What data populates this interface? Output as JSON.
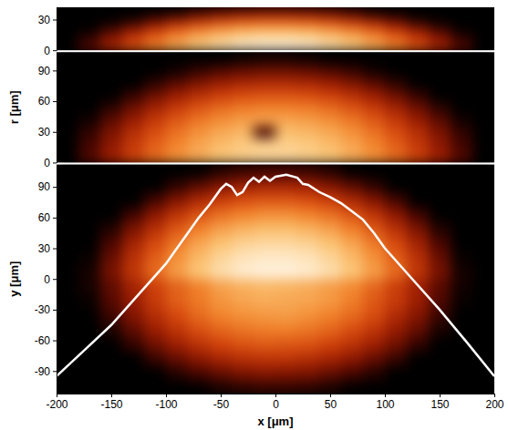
{
  "chart_data": [
    {
      "type": "heatmap",
      "xlim": [
        -200,
        200
      ],
      "ylim": [
        0,
        42
      ],
      "yticks": [
        0,
        30
      ],
      "tick_labels": "y",
      "zlim": [
        0,
        1
      ],
      "x_edges": [
        -200,
        -180,
        -160,
        -140,
        -120,
        -100,
        -80,
        -60,
        -40,
        -20,
        0,
        20,
        40,
        60,
        80,
        100,
        120,
        140,
        160,
        180,
        200
      ],
      "y_edges": [
        0,
        7,
        14,
        21,
        28,
        35,
        42
      ],
      "cells": [
        [
          0,
          0.19,
          0.37,
          0.53,
          0.66,
          0.77,
          0.86,
          0.92,
          0.97,
          0.99,
          0.99,
          0.97,
          0.92,
          0.86,
          0.77,
          0.66,
          0.53,
          0.37,
          0.19,
          0
        ],
        [
          0,
          0.14,
          0.32,
          0.48,
          0.61,
          0.72,
          0.81,
          0.87,
          0.92,
          0.94,
          0.94,
          0.92,
          0.87,
          0.81,
          0.72,
          0.61,
          0.48,
          0.32,
          0.14,
          0
        ],
        [
          0,
          0.04,
          0.22,
          0.37,
          0.51,
          0.62,
          0.71,
          0.77,
          0.82,
          0.84,
          0.84,
          0.82,
          0.77,
          0.71,
          0.62,
          0.51,
          0.37,
          0.22,
          0.04,
          0
        ],
        [
          0,
          0,
          0.07,
          0.22,
          0.35,
          0.47,
          0.55,
          0.62,
          0.67,
          0.69,
          0.69,
          0.67,
          0.62,
          0.55,
          0.47,
          0.35,
          0.22,
          0.07,
          0,
          0
        ],
        [
          0,
          0,
          0,
          0.02,
          0.15,
          0.26,
          0.35,
          0.42,
          0.46,
          0.48,
          0.48,
          0.46,
          0.42,
          0.35,
          0.26,
          0.15,
          0.02,
          0,
          0,
          0
        ],
        [
          0,
          0,
          0,
          0,
          0,
          0.01,
          0.1,
          0.17,
          0.21,
          0.23,
          0.23,
          0.21,
          0.17,
          0.1,
          0.01,
          0,
          0,
          0,
          0,
          0
        ]
      ]
    },
    {
      "type": "heatmap",
      "ylabel": "r [μm]",
      "xlim": [
        -200,
        200
      ],
      "ylim": [
        0,
        108
      ],
      "yticks": [
        0,
        30,
        60,
        90
      ],
      "tick_labels": "y",
      "zlim": [
        0,
        1
      ],
      "x_edges": [
        -200,
        -180,
        -160,
        -140,
        -120,
        -100,
        -80,
        -60,
        -40,
        -20,
        0,
        20,
        40,
        60,
        80,
        100,
        120,
        140,
        160,
        180,
        200
      ],
      "y_edges": [
        0,
        12,
        24,
        36,
        48,
        60,
        72,
        84,
        96,
        108
      ],
      "cells": [
        [
          0,
          0.18,
          0.34,
          0.48,
          0.6,
          0.7,
          0.77,
          0.84,
          0.87,
          0.89,
          0.89,
          0.87,
          0.84,
          0.77,
          0.7,
          0.6,
          0.48,
          0.34,
          0.18,
          0
        ],
        [
          0,
          0.15,
          0.31,
          0.45,
          0.57,
          0.67,
          0.75,
          0.81,
          0.85,
          0.87,
          0.87,
          0.85,
          0.81,
          0.75,
          0.67,
          0.57,
          0.45,
          0.31,
          0.15,
          0
        ],
        [
          0,
          0.11,
          0.27,
          0.41,
          0.52,
          0.62,
          0.7,
          0.76,
          0.8,
          0.15,
          0.82,
          0.8,
          0.76,
          0.7,
          0.62,
          0.52,
          0.41,
          0.27,
          0.11,
          0
        ],
        [
          0,
          0.04,
          0.2,
          0.33,
          0.45,
          0.55,
          0.63,
          0.69,
          0.73,
          0.75,
          0.75,
          0.73,
          0.69,
          0.63,
          0.55,
          0.45,
          0.33,
          0.2,
          0.04,
          0
        ],
        [
          0,
          0,
          0.1,
          0.24,
          0.36,
          0.46,
          0.54,
          0.6,
          0.64,
          0.66,
          0.66,
          0.64,
          0.6,
          0.54,
          0.46,
          0.36,
          0.24,
          0.1,
          0,
          0
        ],
        [
          0,
          0,
          0,
          0.12,
          0.24,
          0.34,
          0.42,
          0.48,
          0.52,
          0.54,
          0.54,
          0.52,
          0.48,
          0.42,
          0.34,
          0.24,
          0.12,
          0,
          0,
          0
        ],
        [
          0,
          0,
          0,
          0,
          0.1,
          0.2,
          0.28,
          0.34,
          0.38,
          0.4,
          0.4,
          0.38,
          0.34,
          0.28,
          0.2,
          0.1,
          0,
          0,
          0,
          0
        ],
        [
          0,
          0,
          0,
          0,
          0,
          0.04,
          0.12,
          0.18,
          0.22,
          0.24,
          0.24,
          0.22,
          0.18,
          0.12,
          0.04,
          0,
          0,
          0,
          0,
          0
        ],
        [
          0,
          0,
          0,
          0,
          0,
          0,
          0,
          0,
          0.03,
          0.05,
          0.05,
          0.03,
          0,
          0,
          0,
          0,
          0,
          0,
          0,
          0
        ]
      ]
    },
    {
      "type": "heatmap",
      "ylabel": "y [μm]",
      "xlabel": "x [μm]",
      "xlim": [
        -200,
        200
      ],
      "xticks": [
        -200,
        -150,
        -100,
        -50,
        0,
        50,
        100,
        150,
        200
      ],
      "ylim": [
        -112,
        112
      ],
      "yticks": [
        -90,
        -60,
        -30,
        0,
        30,
        60,
        90
      ],
      "zlim": [
        0,
        1
      ],
      "x_edges": [
        -200,
        -180,
        -160,
        -140,
        -120,
        -100,
        -80,
        -60,
        -40,
        -20,
        0,
        20,
        40,
        60,
        80,
        100,
        120,
        140,
        160,
        180,
        200
      ],
      "y_edges": [
        -112,
        -98,
        -84,
        -70,
        -56,
        -42,
        -28,
        -14,
        0,
        14,
        28,
        42,
        56,
        70,
        84,
        98,
        112
      ],
      "cells": [
        [
          0,
          0,
          0,
          0,
          0,
          0,
          0.01,
          0.07,
          0.11,
          0.13,
          0.13,
          0.11,
          0.07,
          0.01,
          0,
          0,
          0,
          0,
          0,
          0
        ],
        [
          0,
          0,
          0,
          0,
          0,
          0.09,
          0.17,
          0.23,
          0.28,
          0.3,
          0.29,
          0.28,
          0.23,
          0.17,
          0.09,
          0,
          0,
          0,
          0,
          0
        ],
        [
          0,
          0,
          0,
          0,
          0.13,
          0.23,
          0.31,
          0.38,
          0.42,
          0.44,
          0.44,
          0.41,
          0.37,
          0.31,
          0.23,
          0.13,
          0,
          0,
          0,
          0
        ],
        [
          0,
          0,
          0,
          0.12,
          0.25,
          0.35,
          0.43,
          0.5,
          0.54,
          0.56,
          0.55,
          0.54,
          0.49,
          0.43,
          0.35,
          0.25,
          0.12,
          0,
          0,
          0
        ],
        [
          0,
          0,
          0.07,
          0.21,
          0.34,
          0.44,
          0.53,
          0.59,
          0.63,
          0.65,
          0.66,
          0.63,
          0.59,
          0.52,
          0.44,
          0.33,
          0.22,
          0.06,
          0,
          0
        ],
        [
          0,
          0,
          0.14,
          0.29,
          0.41,
          0.51,
          0.6,
          0.67,
          0.7,
          0.72,
          0.73,
          0.7,
          0.66,
          0.6,
          0.52,
          0.4,
          0.29,
          0.13,
          0,
          0
        ],
        [
          0,
          0.02,
          0.19,
          0.33,
          0.46,
          0.57,
          0.64,
          0.71,
          0.75,
          0.77,
          0.76,
          0.75,
          0.72,
          0.65,
          0.55,
          0.46,
          0.34,
          0.18,
          0.02,
          0
        ],
        [
          0,
          0.05,
          0.21,
          0.36,
          0.48,
          0.58,
          0.66,
          0.74,
          0.78,
          0.8,
          0.79,
          0.77,
          0.73,
          0.68,
          0.59,
          0.47,
          0.35,
          0.2,
          0.04,
          0
        ],
        [
          0,
          0.05,
          0.26,
          0.44,
          0.6,
          0.73,
          0.84,
          0.92,
          0.97,
          0.99,
          0.99,
          0.97,
          0.92,
          0.84,
          0.73,
          0.6,
          0.44,
          0.26,
          0.05,
          0
        ],
        [
          0,
          0.02,
          0.23,
          0.42,
          0.57,
          0.7,
          0.81,
          0.89,
          0.94,
          0.96,
          0.96,
          0.94,
          0.89,
          0.81,
          0.7,
          0.57,
          0.42,
          0.23,
          0.02,
          0
        ],
        [
          0,
          0,
          0.17,
          0.36,
          0.51,
          0.64,
          0.75,
          0.83,
          0.88,
          0.9,
          0.9,
          0.88,
          0.83,
          0.75,
          0.64,
          0.51,
          0.36,
          0.17,
          0,
          0
        ],
        [
          0,
          0,
          0.08,
          0.27,
          0.42,
          0.55,
          0.66,
          0.74,
          0.79,
          0.82,
          0.82,
          0.79,
          0.74,
          0.66,
          0.55,
          0.42,
          0.27,
          0.08,
          0,
          0
        ],
        [
          0,
          0,
          0,
          0.15,
          0.31,
          0.44,
          0.54,
          0.62,
          0.67,
          0.7,
          0.7,
          0.67,
          0.62,
          0.54,
          0.44,
          0.31,
          0.15,
          0,
          0,
          0
        ],
        [
          0,
          0,
          0,
          0,
          0.16,
          0.29,
          0.39,
          0.47,
          0.52,
          0.55,
          0.55,
          0.52,
          0.47,
          0.39,
          0.29,
          0.16,
          0,
          0,
          0,
          0
        ],
        [
          0,
          0,
          0,
          0,
          0,
          0.11,
          0.21,
          0.29,
          0.35,
          0.37,
          0.37,
          0.35,
          0.29,
          0.21,
          0.11,
          0,
          0,
          0,
          0,
          0
        ],
        [
          0,
          0,
          0,
          0,
          0,
          0,
          0.01,
          0.09,
          0.14,
          0.16,
          0.16,
          0.14,
          0.09,
          0.01,
          0,
          0,
          0,
          0,
          0,
          0
        ]
      ],
      "series": [
        {
          "type": "line",
          "color": "#ffffff",
          "x": [
            -200,
            -175,
            -150,
            -125,
            -100,
            -90,
            -80,
            -70,
            -60,
            -50,
            -45,
            -40,
            -35,
            -30,
            -25,
            -20,
            -15,
            -10,
            -5,
            0,
            10,
            20,
            25,
            30,
            40,
            50,
            60,
            70,
            80,
            90,
            100,
            125,
            150,
            175,
            200
          ],
          "values": [
            -95,
            -70,
            -45,
            -15,
            15,
            30,
            45,
            60,
            73,
            88,
            93,
            90,
            82,
            85,
            94,
            99,
            95,
            100,
            96,
            100,
            102,
            99,
            93,
            92,
            85,
            80,
            74,
            66,
            58,
            45,
            30,
            0,
            -30,
            -62,
            -95
          ]
        }
      ]
    }
  ]
}
